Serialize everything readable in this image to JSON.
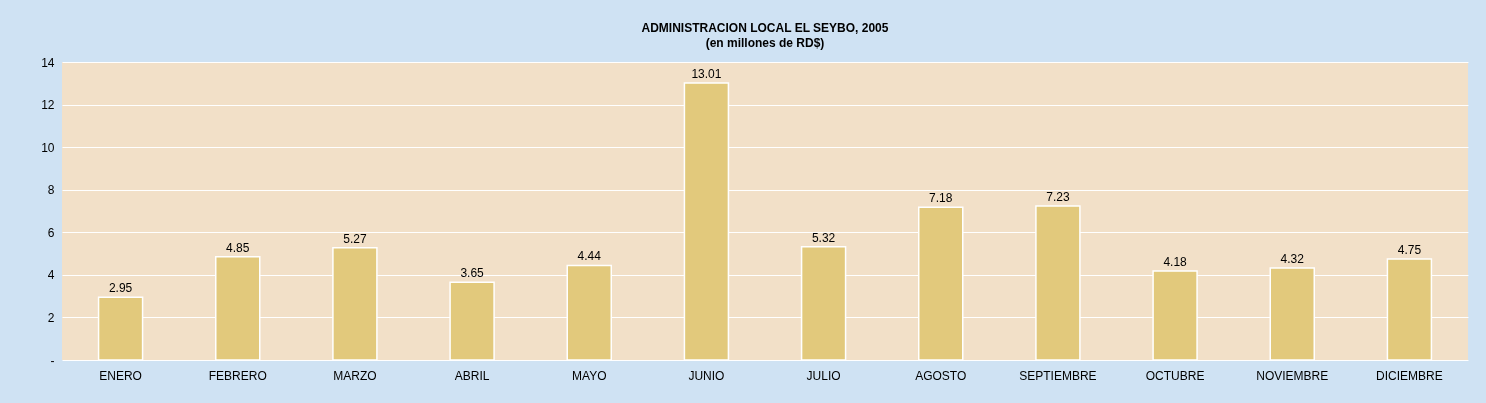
{
  "chart_data": {
    "type": "bar",
    "title": "ADMINISTRACION LOCAL EL SEYBO, 2005",
    "subtitle": "(en millones de RD$)",
    "categories": [
      "ENERO",
      "FEBRERO",
      "MARZO",
      "ABRIL",
      "MAYO",
      "JUNIO",
      "JULIO",
      "AGOSTO",
      "SEPTIEMBRE",
      "OCTUBRE",
      "NOVIEMBRE",
      "DICIEMBRE"
    ],
    "values": [
      2.95,
      4.85,
      5.27,
      3.65,
      4.44,
      13.01,
      5.32,
      7.18,
      7.23,
      4.18,
      4.32,
      4.75
    ],
    "color": "#e2c97c",
    "ylim": [
      0,
      14
    ],
    "yticks": [
      {
        "value": 0,
        "label": "-"
      },
      2,
      4,
      6,
      8,
      10,
      12,
      14
    ],
    "grid": "y",
    "data_labels": true
  }
}
